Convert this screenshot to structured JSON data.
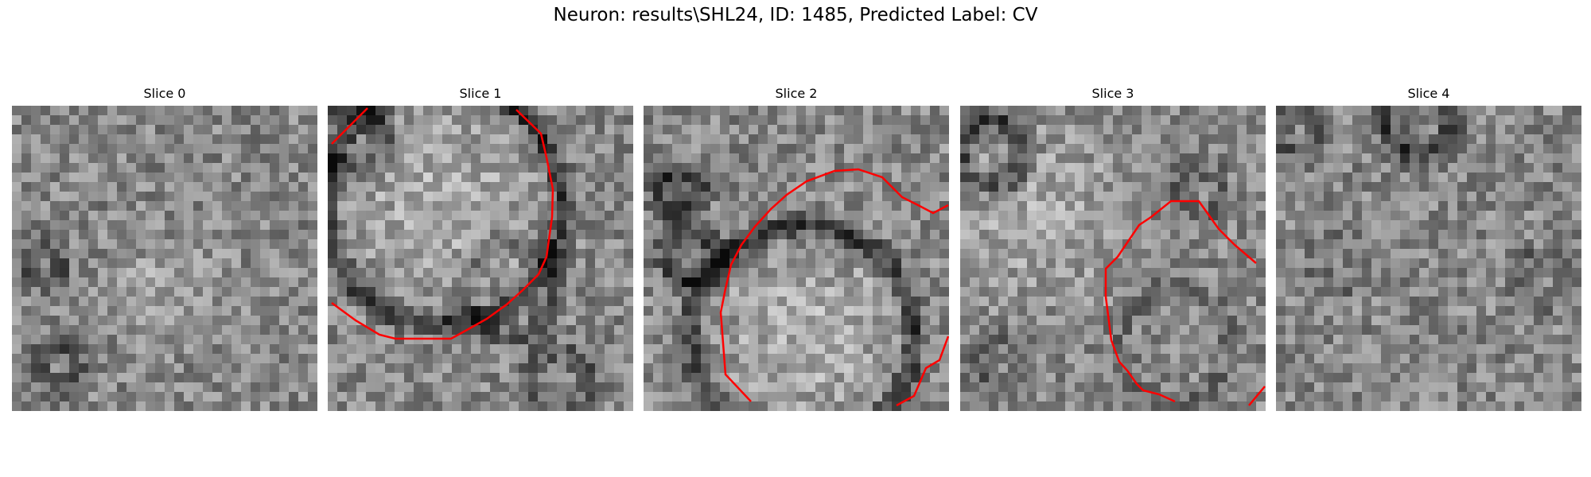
{
  "figure": {
    "title": "Neuron: results\\SHL24, ID: 1485, Predicted Label: CV"
  },
  "panels": [
    {
      "title": "Slice 0"
    },
    {
      "title": "Slice 1"
    },
    {
      "title": "Slice 2"
    },
    {
      "title": "Slice 3"
    },
    {
      "title": "Slice 4"
    }
  ],
  "colors": {
    "contour": "#ff0000",
    "background": "#ffffff"
  }
}
